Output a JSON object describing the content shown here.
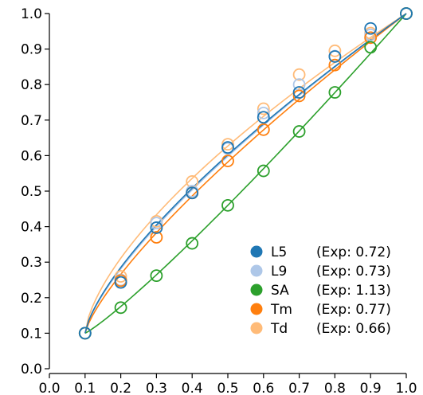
{
  "chart_data": {
    "type": "scatter",
    "title": "",
    "xlabel": "",
    "ylabel": "",
    "xlim": [
      0.0,
      1.0
    ],
    "ylim": [
      0.0,
      1.0
    ],
    "x_ticks": [
      "0.0",
      "0.1",
      "0.2",
      "0.3",
      "0.4",
      "0.5",
      "0.6",
      "0.7",
      "0.8",
      "0.9",
      "1.0"
    ],
    "y_ticks": [
      "0.0",
      "0.1",
      "0.2",
      "0.3",
      "0.4",
      "0.5",
      "0.6",
      "0.7",
      "0.8",
      "0.9",
      "1.0"
    ],
    "grid": false,
    "legend_position": "lower-right",
    "series": [
      {
        "name": "L5",
        "exponent_label": "(Exp: 0.72)",
        "exponent": 0.72,
        "color": "#1f77b4",
        "x": [
          0.1,
          0.2,
          0.3,
          0.4,
          0.5,
          0.6,
          0.7,
          0.8,
          0.9,
          1.0
        ],
        "y": [
          0.1,
          0.243,
          0.397,
          0.495,
          0.623,
          0.708,
          0.778,
          0.879,
          0.958,
          1.0
        ]
      },
      {
        "name": "L9",
        "exponent_label": "(Exp: 0.73)",
        "exponent": 0.73,
        "color": "#aec7e8",
        "x": [
          0.1,
          0.2,
          0.3,
          0.4,
          0.5,
          0.6,
          0.7,
          0.8,
          0.9,
          1.0
        ],
        "y": [
          0.1,
          0.25,
          0.41,
          0.5,
          0.62,
          0.72,
          0.8,
          0.88,
          0.94,
          1.0
        ]
      },
      {
        "name": "SA",
        "exponent_label": "(Exp: 1.13)",
        "exponent": 1.13,
        "color": "#2ca02c",
        "x": [
          0.1,
          0.2,
          0.3,
          0.4,
          0.5,
          0.6,
          0.7,
          0.8,
          0.9,
          1.0
        ],
        "y": [
          0.1,
          0.172,
          0.262,
          0.353,
          0.46,
          0.557,
          0.668,
          0.778,
          0.905,
          1.0
        ]
      },
      {
        "name": "Tm",
        "exponent_label": "(Exp: 0.77)",
        "exponent": 0.77,
        "color": "#ff7f0e",
        "x": [
          0.1,
          0.2,
          0.3,
          0.4,
          0.5,
          0.6,
          0.7,
          0.8,
          0.9,
          1.0
        ],
        "y": [
          0.1,
          0.248,
          0.37,
          0.495,
          0.585,
          0.673,
          0.768,
          0.855,
          0.932,
          1.0
        ]
      },
      {
        "name": "Td",
        "exponent_label": "(Exp: 0.66)",
        "exponent": 0.66,
        "color": "#ffbb78",
        "x": [
          0.1,
          0.2,
          0.3,
          0.4,
          0.5,
          0.6,
          0.7,
          0.8,
          0.9,
          1.0
        ],
        "y": [
          0.1,
          0.26,
          0.415,
          0.527,
          0.632,
          0.732,
          0.828,
          0.895,
          0.945,
          1.0
        ]
      }
    ]
  }
}
